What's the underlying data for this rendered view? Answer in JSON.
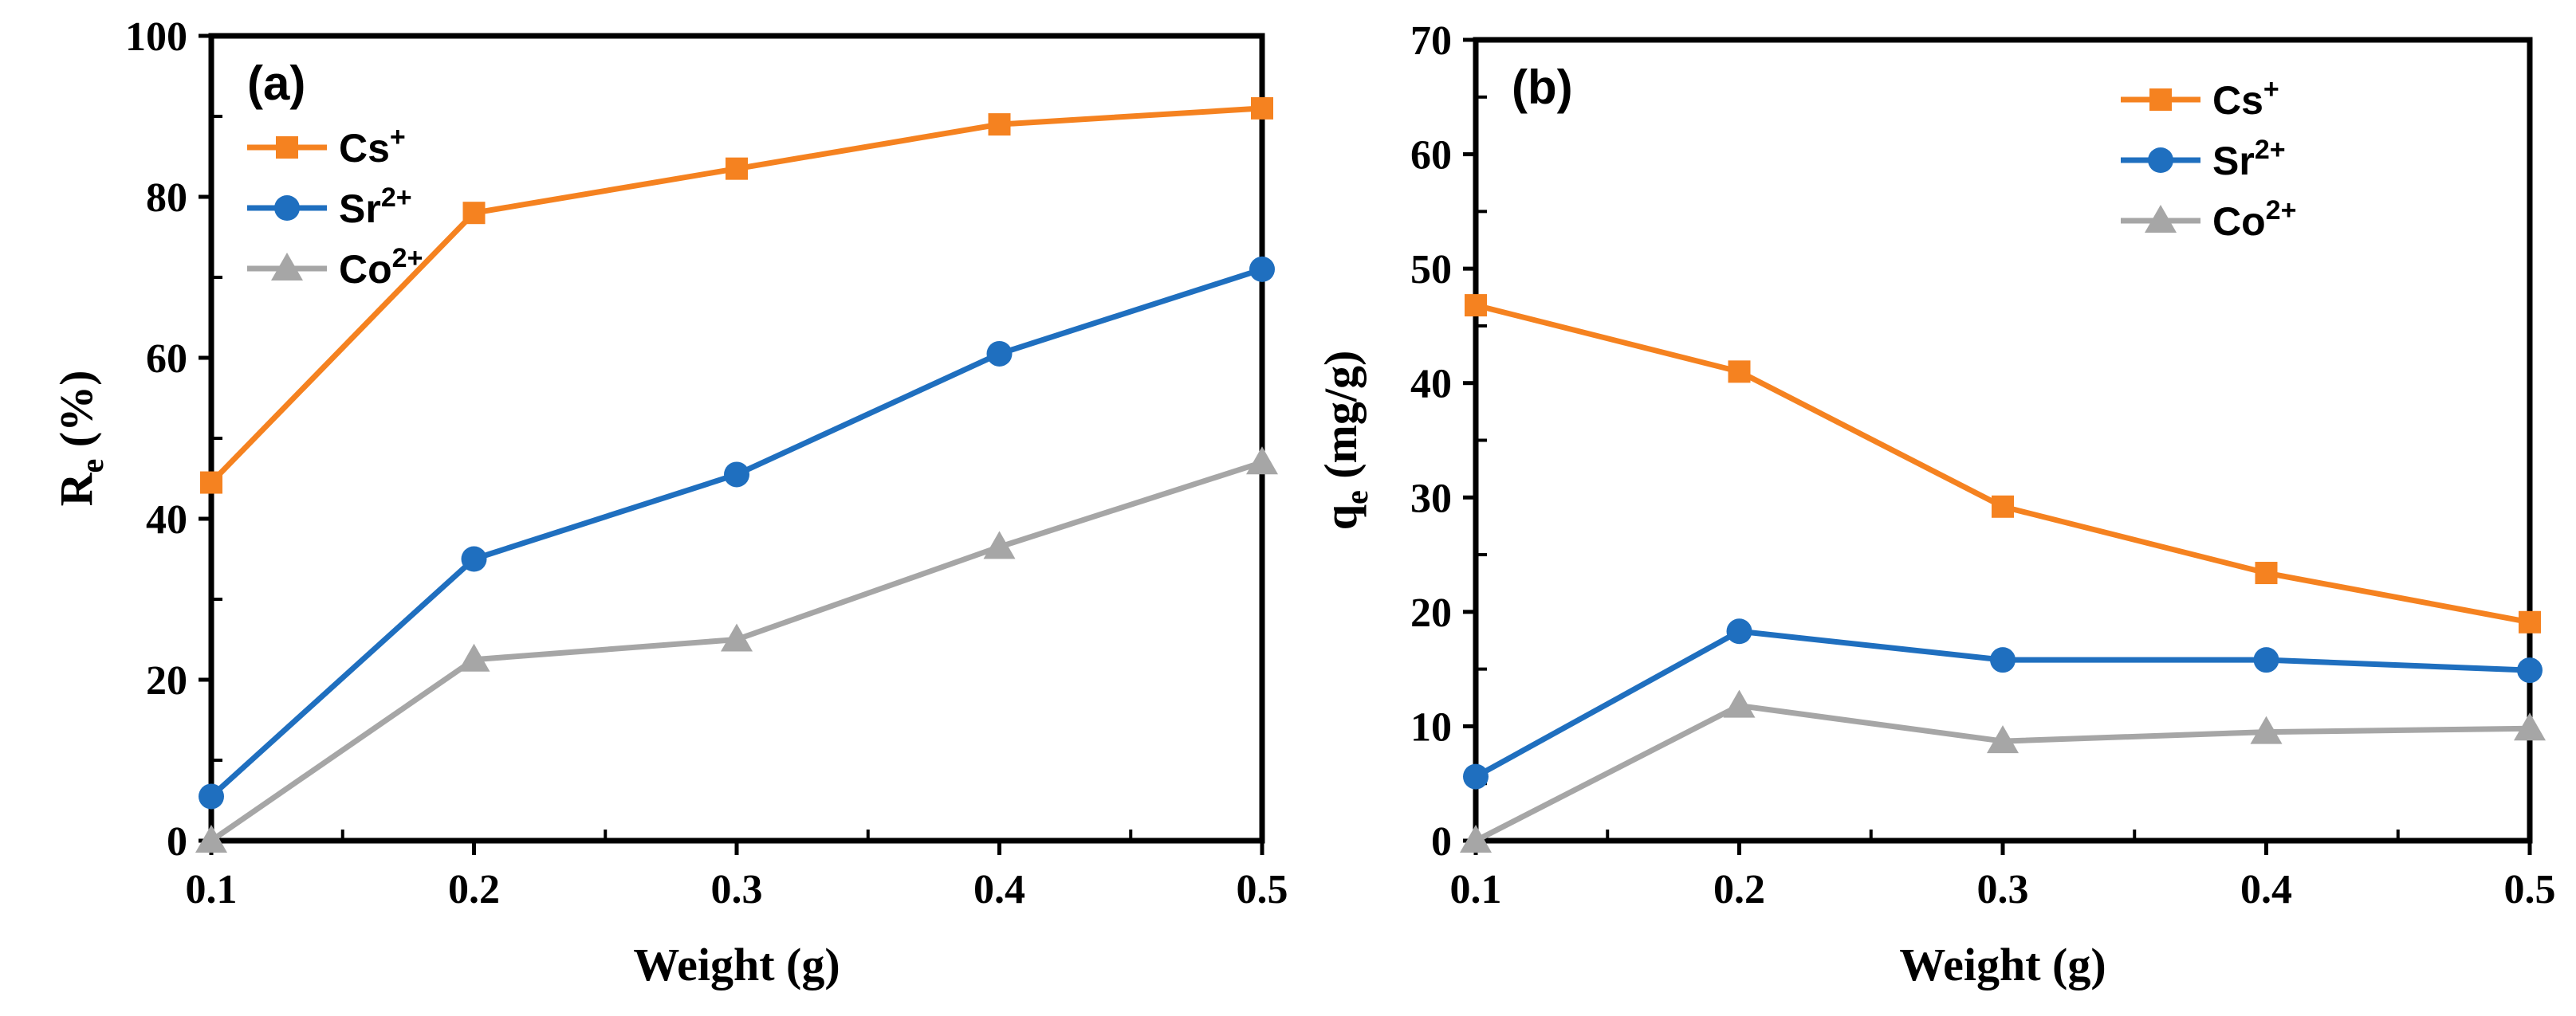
{
  "chart_data": [
    {
      "type": "line",
      "panel_label": "(a)",
      "x": [
        0.1,
        0.2,
        0.3,
        0.4,
        0.5
      ],
      "xticks": [
        "0.1",
        "0.2",
        "0.3",
        "0.4",
        "0.5"
      ],
      "xlabel": "Weight (g)",
      "ylabel": "R",
      "ylabel_sub": "e",
      "ylabel_suffix": " (%)",
      "ylim": [
        0,
        100
      ],
      "yticks": [
        "0",
        "20",
        "40",
        "60",
        "80",
        "100"
      ],
      "legend_position": "top-left",
      "series": [
        {
          "name": "Cs",
          "sup": "+",
          "color": "#F58220",
          "marker": "square",
          "values": [
            44.5,
            78,
            83.5,
            89,
            91
          ]
        },
        {
          "name": "Sr",
          "sup": "2+",
          "color": "#1F6FBF",
          "marker": "circle",
          "values": [
            5.5,
            35,
            45.5,
            60.5,
            71
          ]
        },
        {
          "name": "Co",
          "sup": "2+",
          "color": "#A6A6A6",
          "marker": "triangle",
          "values": [
            0,
            22.5,
            25,
            36.5,
            47
          ]
        }
      ]
    },
    {
      "type": "line",
      "panel_label": "(b)",
      "x": [
        0.1,
        0.2,
        0.3,
        0.4,
        0.5
      ],
      "xticks": [
        "0.1",
        "0.2",
        "0.3",
        "0.4",
        "0.5"
      ],
      "xlabel": "Weight (g)",
      "ylabel": "q",
      "ylabel_sub": "e",
      "ylabel_suffix": " (mg/g)",
      "ylim": [
        0,
        70
      ],
      "yticks": [
        "0",
        "10",
        "20",
        "30",
        "40",
        "50",
        "60",
        "70"
      ],
      "legend_position": "top-right",
      "series": [
        {
          "name": "Cs",
          "sup": "+",
          "color": "#F58220",
          "marker": "square",
          "values": [
            46.8,
            41,
            29.2,
            23.4,
            19.1
          ]
        },
        {
          "name": "Sr",
          "sup": "2+",
          "color": "#1F6FBF",
          "marker": "circle",
          "values": [
            5.6,
            18.3,
            15.8,
            15.8,
            14.9
          ]
        },
        {
          "name": "Co",
          "sup": "2+",
          "color": "#A6A6A6",
          "marker": "triangle",
          "values": [
            0,
            11.8,
            8.7,
            9.5,
            9.8
          ]
        }
      ]
    }
  ]
}
